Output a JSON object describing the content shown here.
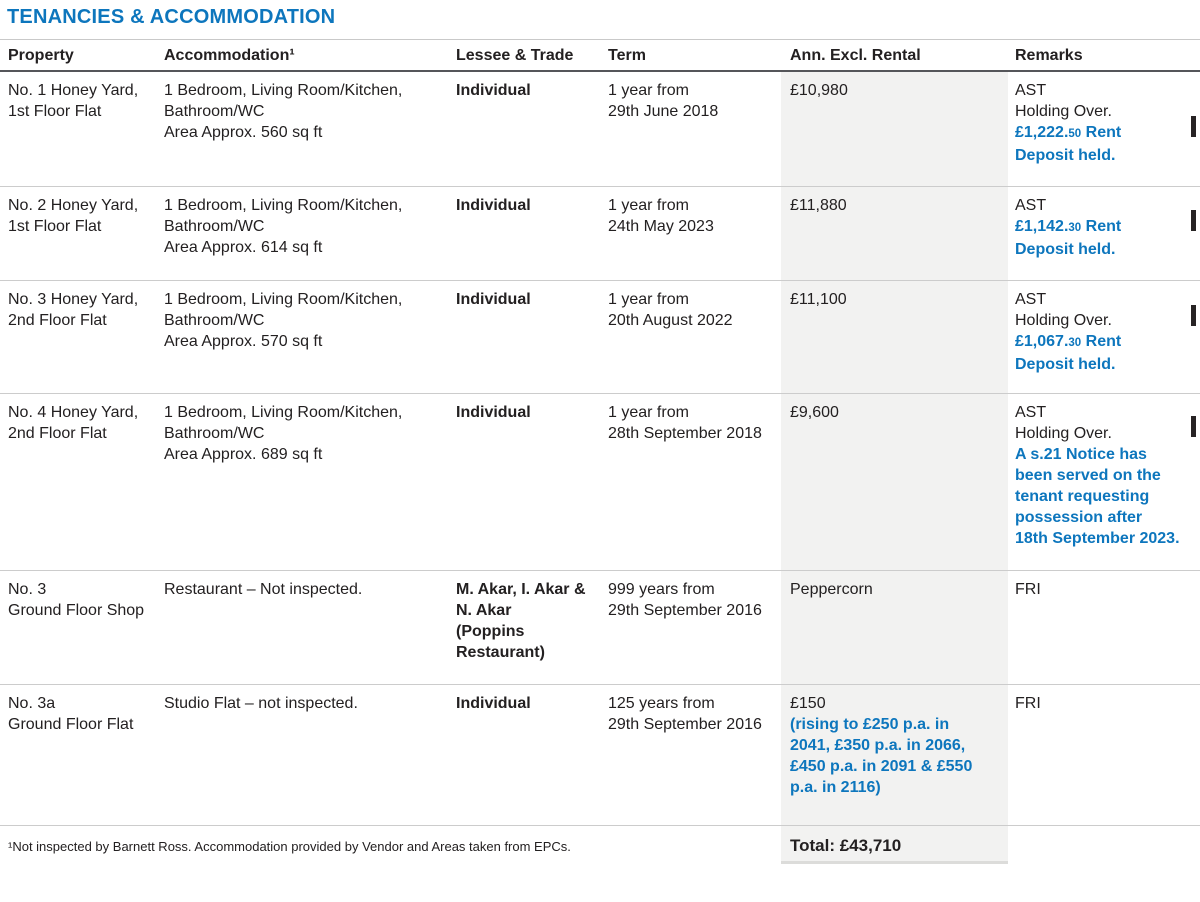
{
  "page": {
    "title": "TENANCIES & ACCOMMODATION"
  },
  "colors": {
    "accent_blue": "#0d76bd",
    "rental_column_bg": "#f2f2f1",
    "body_text": "#232021"
  },
  "table": {
    "columns": {
      "property": "Property",
      "accommodation": "Accommodation¹",
      "lessee": "Lessee & Trade",
      "term": "Term",
      "rental": "Ann. Excl. Rental",
      "remarks": "Remarks"
    },
    "rows": [
      {
        "property": "No. 1 Honey Yard,\n1st Floor Flat",
        "accommodation": "1 Bedroom, Living Room/Kitchen,\nBathroom/WC\nArea Approx. 560 sq ft",
        "lessee": "Individual",
        "term": "1 year from\n29th June 2018",
        "rental": "£10,980",
        "remarks_plain": "AST\nHolding Over.",
        "deposit_main": "£1,222.",
        "deposit_cents": "50",
        "deposit_rest": " Rent\nDeposit held."
      },
      {
        "property": "No. 2 Honey Yard,\n1st Floor Flat",
        "accommodation": "1 Bedroom, Living Room/Kitchen,\nBathroom/WC\nArea Approx. 614 sq ft",
        "lessee": "Individual",
        "term": "1 year from\n24th May 2023",
        "rental": "£11,880",
        "remarks_plain": "AST",
        "deposit_main": "£1,142.",
        "deposit_cents": "30",
        "deposit_rest": " Rent\nDeposit held."
      },
      {
        "property": "No. 3 Honey Yard,\n2nd Floor Flat",
        "accommodation": "1 Bedroom, Living Room/Kitchen,\nBathroom/WC\nArea Approx. 570 sq ft",
        "lessee": "Individual",
        "term": "1 year from\n20th August 2022",
        "rental": "£11,100",
        "remarks_plain": "AST\nHolding Over.",
        "deposit_main": "£1,067.",
        "deposit_cents": "30",
        "deposit_rest": " Rent\nDeposit held."
      },
      {
        "property": "No. 4 Honey Yard,\n2nd Floor Flat",
        "accommodation": "1 Bedroom, Living Room/Kitchen,\nBathroom/WC\nArea Approx. 689 sq ft",
        "lessee": "Individual",
        "term": "1 year from\n28th September 2018",
        "rental": "£9,600",
        "remarks_plain": "AST\nHolding Over.",
        "notice": "A s.21 Notice has\nbeen served on the\ntenant requesting\npossession after\n18th September 2023."
      },
      {
        "property": "No. 3\nGround Floor Shop",
        "accommodation": "Restaurant – Not inspected.",
        "lessee": "M. Akar, I. Akar &\nN. Akar\n(Poppins\nRestaurant)",
        "term": "999 years from\n29th September 2016",
        "rental": "Peppercorn",
        "remarks_plain": "FRI"
      },
      {
        "property": "No. 3a\nGround Floor Flat",
        "accommodation": "Studio Flat – not inspected.",
        "lessee": "Individual",
        "term": "125 years from\n29th September 2016",
        "rental": "£150",
        "rental_note": "(rising to £250 p.a. in\n2041, £350 p.a. in 2066,\n£450 p.a. in 2091 & £550\np.a. in 2116)",
        "remarks_plain": "FRI"
      }
    ],
    "footer": {
      "footnote": "¹Not inspected by Barnett Ross. Accommodation provided by Vendor and Areas taken from EPCs.",
      "total": "Total: £43,710"
    }
  }
}
